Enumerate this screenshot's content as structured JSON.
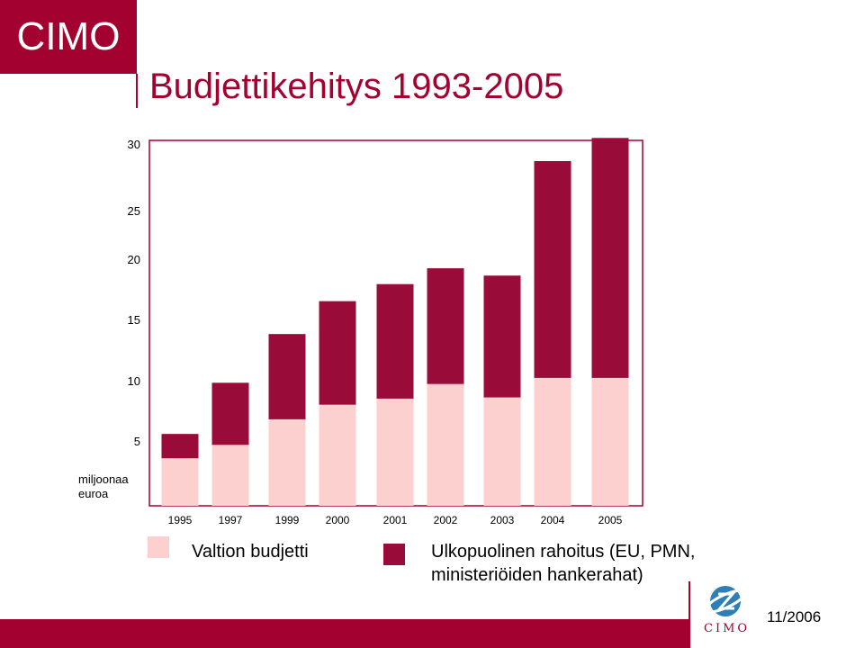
{
  "brand": {
    "logo_text": "CIMO",
    "footer_logo_text": "CIMO"
  },
  "title": "Budjettikehitys 1993-2005",
  "date": "11/2006",
  "colors": {
    "brand": "#a3012f",
    "valtion": "#fcd0ce",
    "ulkopuolinen": "#990b39"
  },
  "legend": [
    {
      "label": "Valtion budjetti",
      "color": "#fcd0ce"
    },
    {
      "label_line1": "Ulkopuolinen rahoitus (EU, PMN,",
      "label_line2": "ministeriöiden hankerahat)",
      "color": "#990b39"
    }
  ],
  "chart_data": {
    "type": "bar",
    "stacked": true,
    "categories": [
      "1995",
      "1997",
      "1999",
      "2000",
      "2001",
      "2002",
      "2003",
      "2004",
      "2005"
    ],
    "ylabel_line1": "miljoonaa",
    "ylabel_line2": "euroa",
    "yticks": [
      5,
      10,
      15,
      20,
      25,
      30
    ],
    "ylim": [
      0,
      30
    ],
    "grid": false,
    "series": [
      {
        "name": "Valtion budjetti",
        "values": [
          3.9,
          5.0,
          7.1,
          8.3,
          8.8,
          10.0,
          8.9,
          10.5,
          10.5
        ]
      },
      {
        "name": "Ulkopuolinen rahoitus (EU, PMN, ministeriöiden hankerahat)",
        "values": [
          2.0,
          5.1,
          7.0,
          8.5,
          9.4,
          9.5,
          10.0,
          17.8,
          19.7
        ]
      }
    ]
  }
}
